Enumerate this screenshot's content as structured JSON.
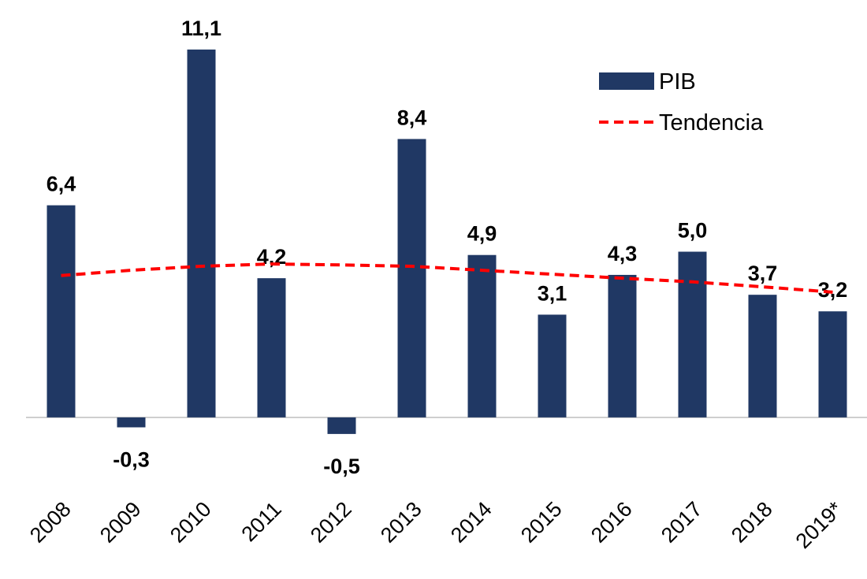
{
  "chart_data": {
    "type": "bar",
    "categories": [
      "2008",
      "2009",
      "2010",
      "2011",
      "2012",
      "2013",
      "2014",
      "2015",
      "2016",
      "2017",
      "2018",
      "2019*"
    ],
    "series": [
      {
        "name": "PIB",
        "type": "bar",
        "color": "#203864",
        "values": [
          6.4,
          -0.3,
          11.1,
          4.2,
          -0.5,
          8.4,
          4.9,
          3.1,
          4.3,
          5.0,
          3.7,
          3.2
        ],
        "value_labels": [
          "6,4",
          "-0,3",
          "11,1",
          "4,2",
          "-0,5",
          "8,4",
          "4,9",
          "3,1",
          "4,3",
          "5,0",
          "3,7",
          "3,2"
        ]
      },
      {
        "name": "Tendencia",
        "type": "line",
        "line_style": "dashed",
        "color": "#ff0000",
        "values": [
          4.28,
          4.44,
          4.56,
          4.63,
          4.6,
          4.56,
          4.44,
          4.32,
          4.2,
          4.09,
          3.94,
          3.78
        ]
      }
    ],
    "ylim": [
      -2,
      12
    ],
    "grid": false,
    "legend": "upper right"
  }
}
